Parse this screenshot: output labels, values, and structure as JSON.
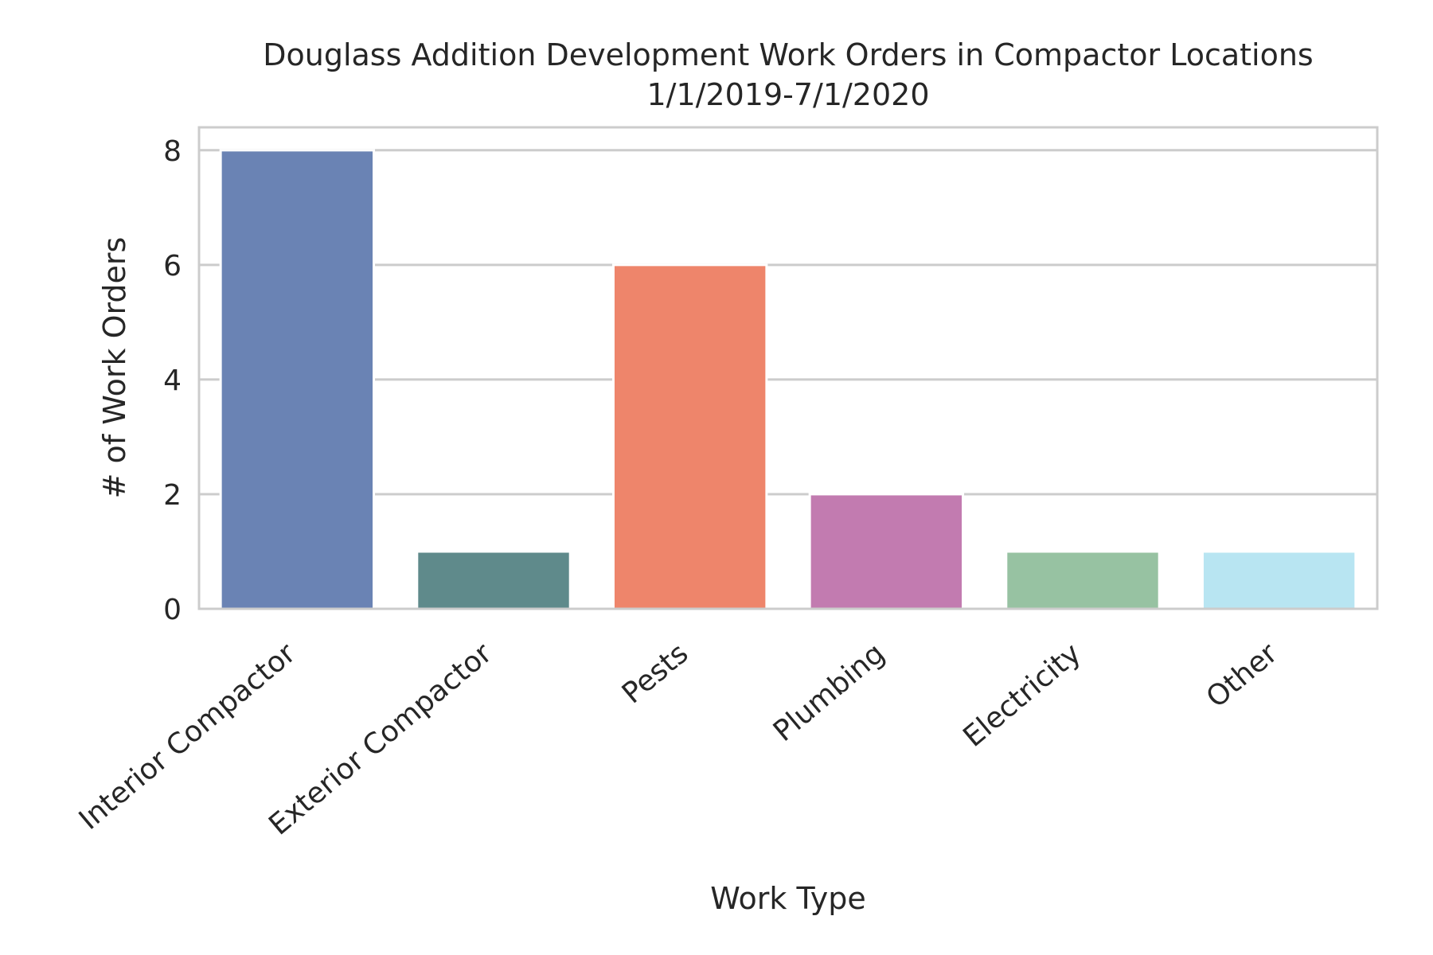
{
  "chart_data": {
    "type": "bar",
    "title": "Douglass Addition Development Work Orders in Compactor Locations",
    "subtitle": "1/1/2019-7/1/2020",
    "xlabel": "Work Type",
    "ylabel": "# of Work Orders",
    "categories": [
      "Interior Compactor",
      "Exterior Compactor",
      "Pests",
      "Plumbing",
      "Electricity",
      "Other"
    ],
    "values": [
      8,
      1,
      6,
      2,
      1,
      1
    ],
    "colors": [
      "#6a83b4",
      "#5f8a8b",
      "#ee856b",
      "#c27bb0",
      "#97c2a2",
      "#b8e5f2"
    ],
    "ylim": [
      0,
      8.4
    ],
    "yticks": [
      0,
      2,
      4,
      6,
      8
    ],
    "grid": true,
    "grid_color": "#cccccc",
    "background": "#ffffff",
    "text_color": "#262626"
  }
}
